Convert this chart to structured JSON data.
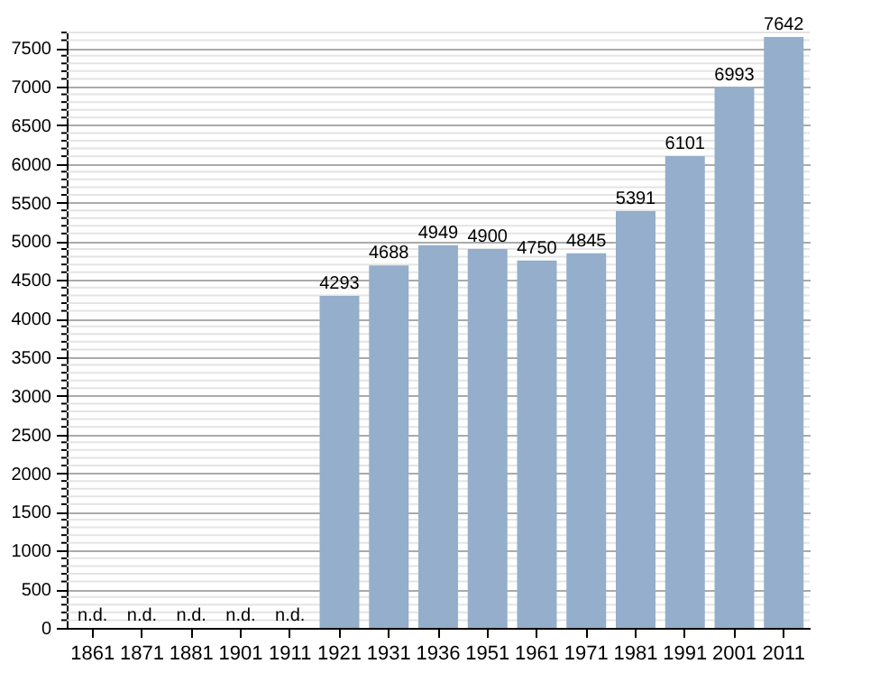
{
  "chart_data": {
    "type": "bar",
    "categories": [
      "1861",
      "1871",
      "1881",
      "1901",
      "1911",
      "1921",
      "1931",
      "1936",
      "1951",
      "1961",
      "1971",
      "1981",
      "1991",
      "2001",
      "2011"
    ],
    "values": [
      null,
      null,
      null,
      null,
      null,
      4293,
      4688,
      4949,
      4900,
      4750,
      4845,
      5391,
      6101,
      6993,
      7642
    ],
    "value_labels": [
      "n.d.",
      "n.d.",
      "n.d.",
      "n.d.",
      "n.d.",
      "4293",
      "4688",
      "4949",
      "4900",
      "4750",
      "4845",
      "5391",
      "6101",
      "6993",
      "7642"
    ],
    "color": "#94aecb",
    "ylim": [
      0,
      7700
    ],
    "yticks": [
      0,
      {
        "value": 100,
        "label": null
      },
      {
        "value": 200,
        "label": null
      },
      {
        "value": 300,
        "label": null
      },
      {
        "value": 400,
        "label": null
      },
      500,
      {
        "value": 600,
        "label": null
      },
      {
        "value": 700,
        "label": null
      },
      {
        "value": 800,
        "label": null
      },
      {
        "value": 900,
        "label": null
      },
      1000,
      {
        "value": 1100,
        "label": null
      },
      {
        "value": 1200,
        "label": null
      },
      {
        "value": 1300,
        "label": null
      },
      {
        "value": 1400,
        "label": null
      },
      1500,
      {
        "value": 1600,
        "label": null
      },
      {
        "value": 1700,
        "label": null
      },
      {
        "value": 1800,
        "label": null
      },
      {
        "value": 1900,
        "label": null
      },
      2000,
      {
        "value": 2100,
        "label": null
      },
      {
        "value": 2200,
        "label": null
      },
      {
        "value": 2300,
        "label": null
      },
      {
        "value": 2400,
        "label": null
      },
      2500,
      {
        "value": 2600,
        "label": null
      },
      {
        "value": 2700,
        "label": null
      },
      {
        "value": 2800,
        "label": null
      },
      {
        "value": 2900,
        "label": null
      },
      3000,
      {
        "value": 3100,
        "label": null
      },
      {
        "value": 3200,
        "label": null
      },
      {
        "value": 3300,
        "label": null
      },
      {
        "value": 3400,
        "label": null
      },
      3500,
      {
        "value": 3600,
        "label": null
      },
      {
        "value": 3700,
        "label": null
      },
      {
        "value": 3800,
        "label": null
      },
      {
        "value": 3900,
        "label": null
      },
      4000,
      {
        "value": 4100,
        "label": null
      },
      {
        "value": 4200,
        "label": null
      },
      {
        "value": 4300,
        "label": null
      },
      {
        "value": 4400,
        "label": null
      },
      4500,
      {
        "value": 4600,
        "label": null
      },
      {
        "value": 4700,
        "label": null
      },
      {
        "value": 4800,
        "label": null
      },
      {
        "value": 4900,
        "label": null
      },
      5000,
      {
        "value": 5100,
        "label": null
      },
      {
        "value": 5200,
        "label": null
      },
      {
        "value": 5300,
        "label": null
      },
      {
        "value": 5400,
        "label": null
      },
      5500,
      {
        "value": 5600,
        "label": null
      },
      {
        "value": 5700,
        "label": null
      },
      {
        "value": 5800,
        "label": null
      },
      {
        "value": 5900,
        "label": null
      },
      6000,
      {
        "value": 6100,
        "label": null
      },
      {
        "value": 6200,
        "label": null
      },
      {
        "value": 6300,
        "label": null
      },
      {
        "value": 6400,
        "label": null
      },
      6500,
      {
        "value": 6600,
        "label": null
      },
      {
        "value": 6700,
        "label": null
      },
      {
        "value": 6800,
        "label": null
      },
      {
        "value": 6900,
        "label": null
      },
      7000,
      {
        "value": 7100,
        "label": null
      },
      {
        "value": 7200,
        "label": null
      },
      {
        "value": 7300,
        "label": null
      },
      {
        "value": 7400,
        "label": null
      },
      7500,
      {
        "value": 7600,
        "label": null
      },
      {
        "value": 7700,
        "label": null
      }
    ],
    "grid": "y"
  }
}
